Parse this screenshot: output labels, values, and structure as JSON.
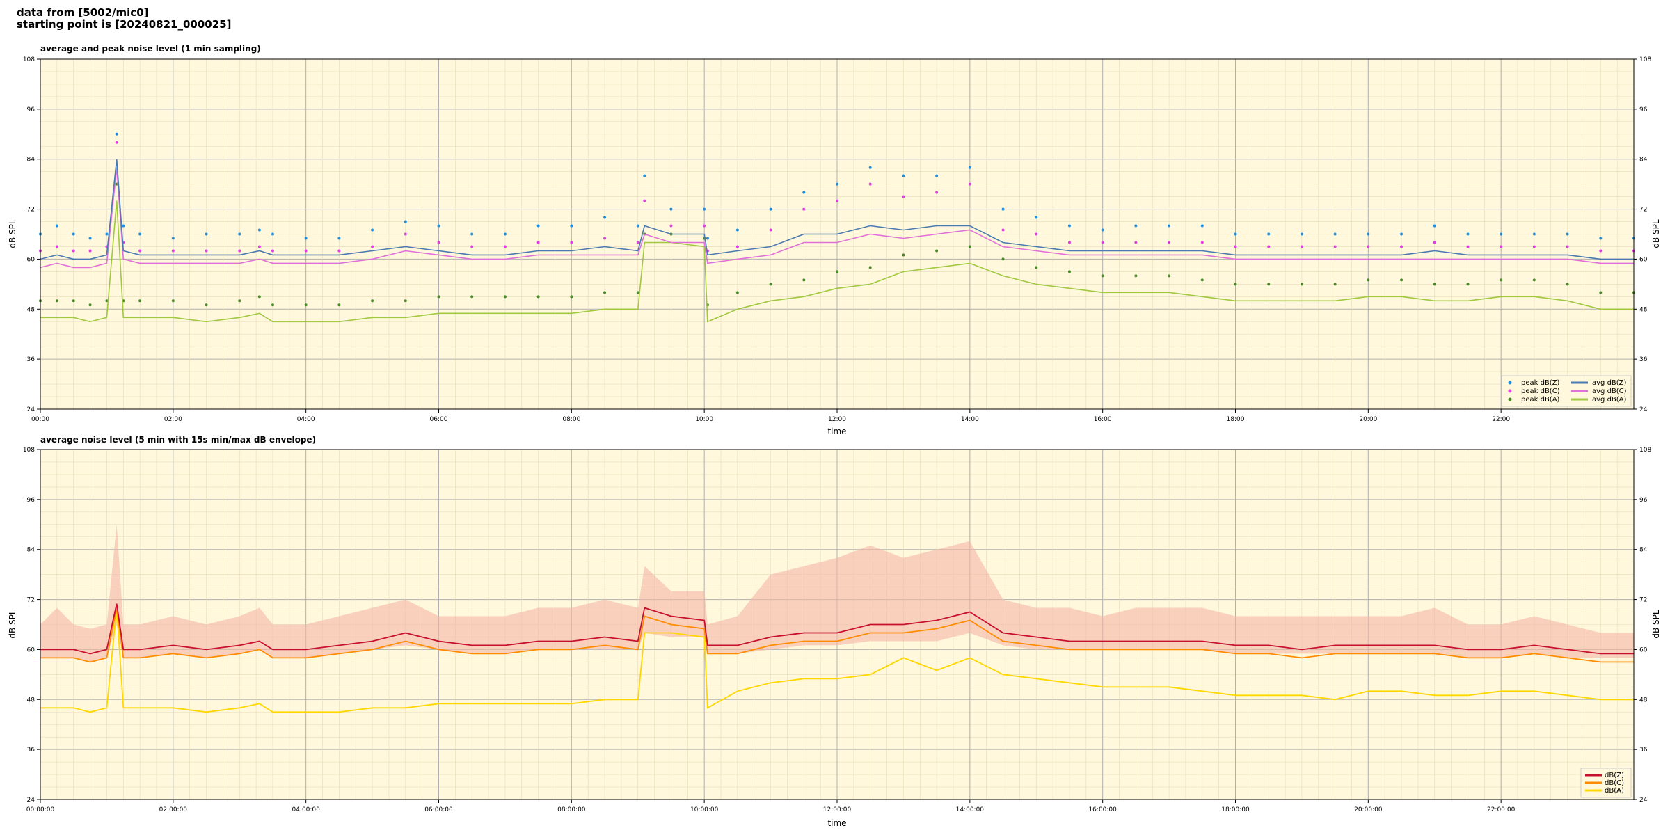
{
  "header": {
    "line1": "data from [5002/mic0]",
    "line2": "starting point is [20240821_000025]"
  },
  "colors": {
    "bg": "#fff8dc",
    "peak_z": "#1f8fe0",
    "peak_c": "#e040e0",
    "peak_a": "#4a8a2a",
    "avg_z": "#4a7ab0",
    "avg_c": "#e070d8",
    "avg_a": "#a0c840",
    "z": "#c8102e",
    "c": "#ff8c00",
    "a": "#ffd700",
    "envelope": "#f4b6a6"
  },
  "chart_data": [
    {
      "type": "line",
      "title": "average and peak noise level (1 min sampling)",
      "xlabel": "time",
      "ylabel": "dB SPL",
      "ylim": [
        24,
        108
      ],
      "xlim_hours": [
        0,
        24
      ],
      "yticks": [
        24,
        36,
        48,
        60,
        72,
        84,
        96,
        108
      ],
      "xticks": [
        "00:00",
        "02:00",
        "04:00",
        "06:00",
        "08:00",
        "10:00",
        "12:00",
        "14:00",
        "16:00",
        "18:00",
        "20:00",
        "22:00"
      ],
      "grid": true,
      "legend_position": "bottom-right",
      "legend": [
        "peak dB(Z)",
        "peak dB(C)",
        "peak dB(A)",
        "avg dB(Z)",
        "avg dB(C)",
        "avg dB(A)"
      ],
      "x_hours": [
        0,
        0.25,
        0.5,
        0.75,
        1,
        1.15,
        1.25,
        1.5,
        2,
        2.5,
        3,
        3.3,
        3.5,
        4,
        4.5,
        5,
        5.5,
        6,
        6.5,
        7,
        7.5,
        8,
        8.5,
        9,
        9.1,
        9.5,
        10,
        10.05,
        10.5,
        11,
        11.5,
        12,
        12.5,
        13,
        13.5,
        14,
        14.5,
        15,
        15.5,
        16,
        16.5,
        17,
        17.5,
        18,
        18.5,
        19,
        19.5,
        20,
        20.5,
        21,
        21.5,
        22,
        22.5,
        23,
        23.5,
        24
      ],
      "series": [
        {
          "name": "avg dB(Z)",
          "values": [
            60,
            61,
            60,
            60,
            61,
            84,
            62,
            61,
            61,
            61,
            61,
            62,
            61,
            61,
            61,
            62,
            63,
            62,
            61,
            61,
            62,
            62,
            63,
            62,
            68,
            66,
            66,
            61,
            62,
            63,
            66,
            66,
            68,
            67,
            68,
            68,
            64,
            63,
            62,
            62,
            62,
            62,
            62,
            61,
            61,
            61,
            61,
            61,
            61,
            62,
            61,
            61,
            61,
            61,
            60,
            60
          ]
        },
        {
          "name": "avg dB(C)",
          "values": [
            58,
            59,
            58,
            58,
            59,
            82,
            60,
            59,
            59,
            59,
            59,
            60,
            59,
            59,
            59,
            60,
            62,
            61,
            60,
            60,
            61,
            61,
            61,
            61,
            66,
            64,
            64,
            59,
            60,
            61,
            64,
            64,
            66,
            65,
            66,
            67,
            63,
            62,
            61,
            61,
            61,
            61,
            61,
            60,
            60,
            60,
            60,
            60,
            60,
            60,
            60,
            60,
            60,
            60,
            59,
            59
          ]
        },
        {
          "name": "avg dB(A)",
          "values": [
            46,
            46,
            46,
            45,
            46,
            74,
            46,
            46,
            46,
            45,
            46,
            47,
            45,
            45,
            45,
            46,
            46,
            47,
            47,
            47,
            47,
            47,
            48,
            48,
            64,
            64,
            63,
            45,
            48,
            50,
            51,
            53,
            54,
            57,
            58,
            59,
            56,
            54,
            53,
            52,
            52,
            52,
            51,
            50,
            50,
            50,
            50,
            51,
            51,
            50,
            50,
            51,
            51,
            50,
            48,
            48
          ]
        },
        {
          "name": "peak dB(Z)",
          "values": [
            66,
            68,
            66,
            65,
            66,
            90,
            68,
            66,
            65,
            66,
            66,
            67,
            66,
            65,
            65,
            67,
            69,
            68,
            66,
            66,
            68,
            68,
            70,
            68,
            80,
            72,
            72,
            65,
            67,
            72,
            76,
            78,
            82,
            80,
            80,
            82,
            72,
            70,
            68,
            67,
            68,
            68,
            68,
            66,
            66,
            66,
            66,
            66,
            66,
            68,
            66,
            66,
            66,
            66,
            65,
            65
          ]
        },
        {
          "name": "peak dB(C)",
          "values": [
            62,
            63,
            62,
            62,
            63,
            88,
            64,
            62,
            62,
            62,
            62,
            63,
            62,
            62,
            62,
            63,
            66,
            64,
            63,
            63,
            64,
            64,
            65,
            64,
            74,
            68,
            68,
            62,
            63,
            67,
            72,
            74,
            78,
            75,
            76,
            78,
            67,
            66,
            64,
            64,
            64,
            64,
            64,
            63,
            63,
            63,
            63,
            63,
            63,
            64,
            63,
            63,
            63,
            63,
            62,
            62
          ]
        },
        {
          "name": "peak dB(A)",
          "values": [
            50,
            50,
            50,
            49,
            50,
            78,
            50,
            50,
            50,
            49,
            50,
            51,
            49,
            49,
            49,
            50,
            50,
            51,
            51,
            51,
            51,
            51,
            52,
            52,
            66,
            66,
            65,
            49,
            52,
            54,
            55,
            57,
            58,
            61,
            62,
            63,
            60,
            58,
            57,
            56,
            56,
            56,
            55,
            54,
            54,
            54,
            54,
            55,
            55,
            54,
            54,
            55,
            55,
            54,
            52,
            52
          ]
        }
      ]
    },
    {
      "type": "line",
      "title": "average noise level (5 min with 15s min/max dB envelope)",
      "xlabel": "time",
      "ylabel": "dB SPL",
      "ylim": [
        24,
        108
      ],
      "xlim_hours": [
        0,
        24
      ],
      "yticks": [
        24,
        36,
        48,
        60,
        72,
        84,
        96,
        108
      ],
      "xticks": [
        "00:00:00",
        "02:00:00",
        "04:00:00",
        "06:00:00",
        "08:00:00",
        "10:00:00",
        "12:00:00",
        "14:00:00",
        "16:00:00",
        "18:00:00",
        "20:00:00",
        "22:00:00"
      ],
      "grid": true,
      "legend_position": "bottom-right",
      "legend": [
        "dB(Z)",
        "dB(C)",
        "dB(A)"
      ],
      "x_hours": [
        0,
        0.25,
        0.5,
        0.75,
        1,
        1.15,
        1.25,
        1.5,
        2,
        2.5,
        3,
        3.3,
        3.5,
        4,
        4.5,
        5,
        5.5,
        6,
        6.5,
        7,
        7.5,
        8,
        8.5,
        9,
        9.1,
        9.5,
        10,
        10.05,
        10.5,
        11,
        11.5,
        12,
        12.5,
        13,
        13.5,
        14,
        14.5,
        15,
        15.5,
        16,
        16.5,
        17,
        17.5,
        18,
        18.5,
        19,
        19.5,
        20,
        20.5,
        21,
        21.5,
        22,
        22.5,
        23,
        23.5,
        24
      ],
      "series": [
        {
          "name": "dB(Z)",
          "values": [
            60,
            60,
            60,
            59,
            60,
            71,
            60,
            60,
            61,
            60,
            61,
            62,
            60,
            60,
            61,
            62,
            64,
            62,
            61,
            61,
            62,
            62,
            63,
            62,
            70,
            68,
            67,
            61,
            61,
            63,
            64,
            64,
            66,
            66,
            67,
            69,
            64,
            63,
            62,
            62,
            62,
            62,
            62,
            61,
            61,
            60,
            61,
            61,
            61,
            61,
            60,
            60,
            61,
            60,
            59,
            59
          ]
        },
        {
          "name": "dB(C)",
          "values": [
            58,
            58,
            58,
            57,
            58,
            70,
            58,
            58,
            59,
            58,
            59,
            60,
            58,
            58,
            59,
            60,
            62,
            60,
            59,
            59,
            60,
            60,
            61,
            60,
            68,
            66,
            65,
            59,
            59,
            61,
            62,
            62,
            64,
            64,
            65,
            67,
            62,
            61,
            60,
            60,
            60,
            60,
            60,
            59,
            59,
            58,
            59,
            59,
            59,
            59,
            58,
            58,
            59,
            58,
            57,
            57
          ]
        },
        {
          "name": "dB(A)",
          "values": [
            46,
            46,
            46,
            45,
            46,
            70,
            46,
            46,
            46,
            45,
            46,
            47,
            45,
            45,
            45,
            46,
            46,
            47,
            47,
            47,
            47,
            47,
            48,
            48,
            64,
            64,
            63,
            46,
            50,
            52,
            53,
            53,
            54,
            58,
            55,
            58,
            54,
            53,
            52,
            51,
            51,
            51,
            50,
            49,
            49,
            49,
            48,
            50,
            50,
            49,
            49,
            50,
            50,
            49,
            48,
            48
          ]
        },
        {
          "name": "envelope max",
          "values": [
            66,
            70,
            66,
            65,
            66,
            90,
            66,
            66,
            68,
            66,
            68,
            70,
            66,
            66,
            68,
            70,
            72,
            68,
            68,
            68,
            70,
            70,
            72,
            70,
            80,
            74,
            74,
            66,
            68,
            78,
            80,
            82,
            85,
            82,
            84,
            86,
            72,
            70,
            70,
            68,
            70,
            70,
            70,
            68,
            68,
            68,
            68,
            68,
            68,
            70,
            66,
            66,
            68,
            66,
            64,
            64
          ]
        },
        {
          "name": "envelope min",
          "values": [
            58,
            58,
            58,
            57,
            58,
            66,
            58,
            58,
            59,
            58,
            59,
            60,
            58,
            58,
            59,
            60,
            61,
            60,
            59,
            59,
            60,
            60,
            60,
            60,
            64,
            63,
            63,
            59,
            59,
            60,
            61,
            61,
            62,
            62,
            62,
            64,
            61,
            60,
            60,
            60,
            60,
            60,
            60,
            59,
            59,
            59,
            59,
            59,
            59,
            59,
            58,
            58,
            59,
            58,
            58,
            58
          ]
        }
      ]
    }
  ]
}
